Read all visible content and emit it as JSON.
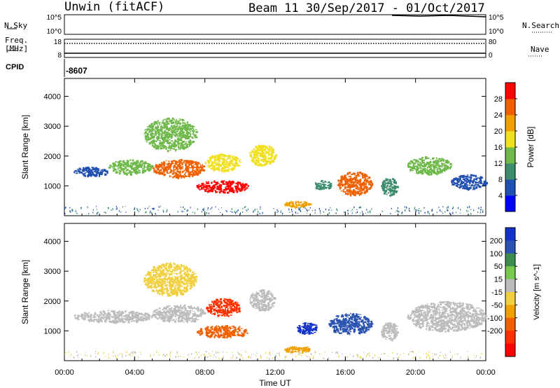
{
  "header": {
    "radar": "Unwin (fitACF)",
    "beam_info": "Beam 11  30/Sep/2017 - 01/Oct/2017"
  },
  "nsky": {
    "label": "N.Sky",
    "ticks_left": [
      "10^5",
      "10^0"
    ],
    "ticks_right": [
      "10^5",
      "10^0"
    ],
    "right_label": "N.Search"
  },
  "freq": {
    "label_line1": "Freq.",
    "label_line2": "[MHz]",
    "ticks_left": [
      "18",
      "8"
    ],
    "ticks_right": [
      "80",
      "0"
    ],
    "right_label": "Nave"
  },
  "cpid": {
    "label": "CPID",
    "value": "-8607"
  },
  "colors": {
    "power_scale": [
      "#0000ff",
      "#1f4fb0",
      "#3d8c6e",
      "#6fb84a",
      "#f0e020",
      "#f0a000",
      "#f06000",
      "#ff0000"
    ],
    "velocity_scale": [
      "#1432c8",
      "#2a52b0",
      "#3c8c50",
      "#78c850",
      "#bcbcbc",
      "#f0d040",
      "#f0a000",
      "#f06000",
      "#ff3000",
      "#ff0000"
    ]
  },
  "chart_data": [
    {
      "type": "heatmap",
      "panel": "power",
      "xlabel": "",
      "ylabel": "Slant Range [km]",
      "xlim": [
        "00:00",
        "24:00"
      ],
      "ylim": [
        0,
        4600
      ],
      "y_ticks": [
        "1000",
        "2000",
        "3000",
        "4000"
      ],
      "colorbar": {
        "label": "Power [dB]",
        "range": [
          0,
          32
        ],
        "ticks": [
          "4",
          "8",
          "12",
          "16",
          "20",
          "24",
          "28"
        ]
      },
      "regions": [
        {
          "t": [
            0.5,
            2.5
          ],
          "r": [
            1350,
            1650
          ],
          "v": 6
        },
        {
          "t": [
            2.5,
            5.0
          ],
          "r": [
            1400,
            1900
          ],
          "v": 12
        },
        {
          "t": [
            5.0,
            8.0
          ],
          "r": [
            1300,
            1900
          ],
          "v": 24
        },
        {
          "t": [
            7.5,
            10.5
          ],
          "r": [
            800,
            1200
          ],
          "v": 28
        },
        {
          "t": [
            8.0,
            10.0
          ],
          "r": [
            1500,
            2100
          ],
          "v": 18
        },
        {
          "t": [
            4.5,
            7.5
          ],
          "r": [
            2200,
            3300
          ],
          "v": 14
        },
        {
          "t": [
            10.5,
            12.0
          ],
          "r": [
            1700,
            2400
          ],
          "v": 16
        },
        {
          "t": [
            12.5,
            14.0
          ],
          "r": [
            300,
            500
          ],
          "v": 20
        },
        {
          "t": [
            14.2,
            15.2
          ],
          "r": [
            900,
            1200
          ],
          "v": 10
        },
        {
          "t": [
            15.5,
            17.5
          ],
          "r": [
            700,
            1500
          ],
          "v": 27
        },
        {
          "t": [
            18.0,
            19.0
          ],
          "r": [
            700,
            1300
          ],
          "v": 8
        },
        {
          "t": [
            19.5,
            22.0
          ],
          "r": [
            1400,
            2000
          ],
          "v": 12
        },
        {
          "t": [
            22.0,
            24.0
          ],
          "r": [
            900,
            1400
          ],
          "v": 6
        }
      ]
    },
    {
      "type": "heatmap",
      "panel": "velocity",
      "xlabel": "Time UT",
      "ylabel": "Slant Range [km]",
      "xlim": [
        "00:00",
        "24:00"
      ],
      "ylim": [
        0,
        4600
      ],
      "x_ticks": [
        "00:00",
        "04:00",
        "08:00",
        "12:00",
        "16:00",
        "20:00",
        "00:00"
      ],
      "y_ticks": [
        "1000",
        "2000",
        "3000",
        "4000"
      ],
      "colorbar": {
        "label": "Velocity [m s^-1]",
        "ticks": [
          "200",
          "100",
          "50",
          "15",
          "-15",
          "-50",
          "-100",
          "-200"
        ]
      },
      "regions": [
        {
          "t": [
            0.5,
            5.0
          ],
          "r": [
            1300,
            1700
          ],
          "v": 0
        },
        {
          "t": [
            5.0,
            8.0
          ],
          "r": [
            1300,
            1900
          ],
          "v": 0
        },
        {
          "t": [
            7.5,
            10.5
          ],
          "r": [
            800,
            1200
          ],
          "v": -180
        },
        {
          "t": [
            8.0,
            10.0
          ],
          "r": [
            1500,
            2100
          ],
          "v": -220
        },
        {
          "t": [
            4.5,
            7.5
          ],
          "r": [
            2200,
            3300
          ],
          "v": -30
        },
        {
          "t": [
            10.5,
            12.0
          ],
          "r": [
            1700,
            2400
          ],
          "v": 0
        },
        {
          "t": [
            12.5,
            14.0
          ],
          "r": [
            300,
            500
          ],
          "v": -60
        },
        {
          "t": [
            13.2,
            14.4
          ],
          "r": [
            900,
            1300
          ],
          "v": 220
        },
        {
          "t": [
            15.0,
            17.5
          ],
          "r": [
            900,
            1600
          ],
          "v": 150
        },
        {
          "t": [
            18.0,
            19.0
          ],
          "r": [
            700,
            1300
          ],
          "v": 10
        },
        {
          "t": [
            19.5,
            24.0
          ],
          "r": [
            1000,
            2000
          ],
          "v": 0
        }
      ]
    }
  ]
}
